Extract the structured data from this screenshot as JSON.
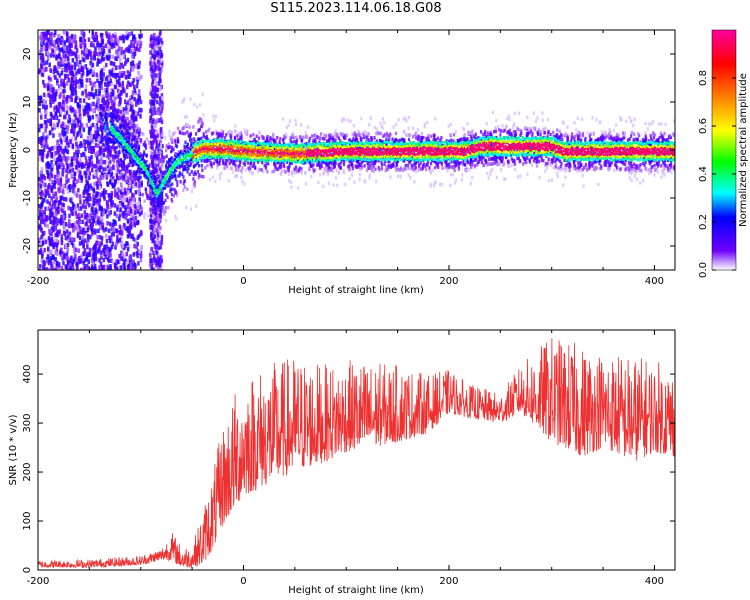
{
  "figure_title": "S115.2023.114.06.18.G08",
  "chart_data": [
    {
      "type": "heatmap",
      "title": "",
      "xlabel": "Height of straight line (km)",
      "ylabel": "Frequency (Hz)",
      "xlim": [
        -200,
        420
      ],
      "ylim": [
        -25,
        25
      ],
      "xticks": [
        -200,
        0,
        200,
        400
      ],
      "yticks": [
        -20,
        -10,
        0,
        10,
        20
      ],
      "colorbar": {
        "label": "Normalized spectral amplitude",
        "range": [
          0,
          1
        ],
        "ticks": [
          0.0,
          0.2,
          0.4,
          0.6,
          0.8
        ],
        "colors": [
          "#ffffff",
          "#7000ff",
          "#0000ff",
          "#00ffff",
          "#00ff00",
          "#ffff00",
          "#ff8000",
          "#ff0000",
          "#ff00a0"
        ]
      },
      "ridge": {
        "x": [
          -130,
          -110,
          -95,
          -85,
          -75,
          -65,
          -55,
          -40,
          -20,
          0,
          50,
          100,
          150,
          200,
          215,
          230,
          260,
          300,
          310,
          350,
          400,
          420
        ],
        "y": [
          5,
          0,
          -4,
          -9,
          -5,
          -2,
          -1,
          0.5,
          0.5,
          0,
          -0.5,
          0,
          0,
          0,
          0,
          1,
          1,
          1,
          0,
          0,
          0,
          0
        ]
      },
      "grid": false
    },
    {
      "type": "line",
      "title": "",
      "xlabel": "Height of straight line (km)",
      "ylabel": "SNR (10 * v/v)",
      "xlim": [
        -200,
        420
      ],
      "ylim": [
        0,
        490
      ],
      "xticks": [
        -200,
        0,
        200,
        400
      ],
      "yticks": [
        0,
        100,
        200,
        300,
        400
      ],
      "series_color": "#ee3030",
      "envelope": {
        "x": [
          -200,
          -150,
          -100,
          -80,
          -70,
          -60,
          -50,
          -40,
          -30,
          -20,
          -10,
          0,
          20,
          50,
          80,
          100,
          150,
          180,
          200,
          220,
          250,
          270,
          300,
          330,
          350,
          380,
          400,
          420
        ],
        "low": [
          5,
          5,
          10,
          20,
          20,
          5,
          5,
          10,
          40,
          90,
          120,
          150,
          170,
          200,
          220,
          240,
          260,
          280,
          320,
          310,
          300,
          320,
          260,
          230,
          250,
          220,
          240,
          230
        ],
        "high": [
          20,
          22,
          30,
          45,
          80,
          50,
          50,
          120,
          200,
          300,
          360,
          400,
          420,
          440,
          420,
          430,
          420,
          400,
          410,
          380,
          360,
          420,
          480,
          460,
          450,
          440,
          430,
          420
        ]
      },
      "grid": false
    }
  ]
}
